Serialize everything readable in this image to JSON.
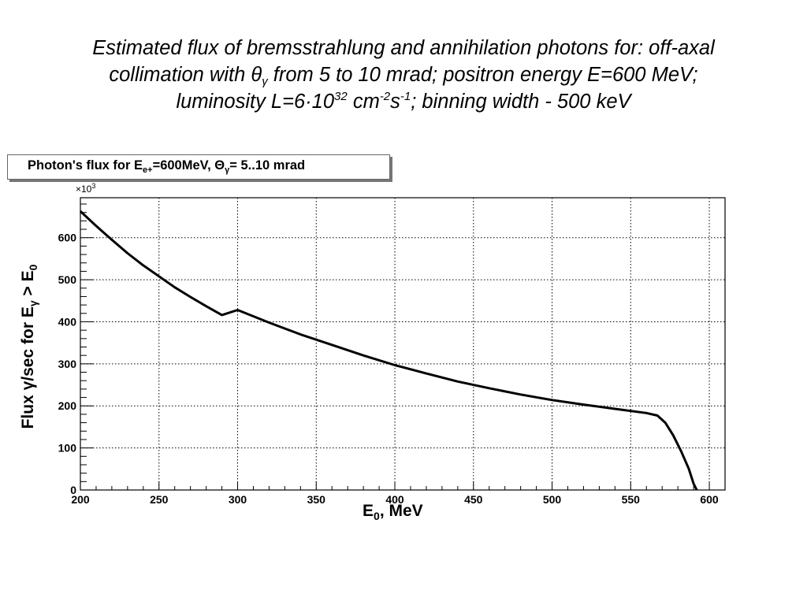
{
  "title": {
    "line1": "Estimated flux of bremsstrahlung and annihilation photons for: off-axal",
    "line2_a": "collimation with θ",
    "line2_sub": "γ",
    "line2_b": " from 5 to 10 mrad; positron energy E=600 MeV;",
    "line3_a": "luminosity L=6·10",
    "line3_sup1": "32",
    "line3_b": " cm",
    "line3_sup2": "-2",
    "line3_c": "s",
    "line3_sup3": "-1",
    "line3_d": "; binning width - 500 keV"
  },
  "plot_title": {
    "a": "Photon's flux for E",
    "sub1": "e+",
    "b": "=600MeV, Θ",
    "sub2": "γ",
    "c": "= 5..10 mrad"
  },
  "chart_data": {
    "type": "line",
    "xlabel_main": "E",
    "xlabel_sub": "0",
    "xlabel_rest": ",  MeV",
    "ylabel_a": "Flux γ/sec for E",
    "ylabel_sub1": "γ",
    "ylabel_b": " > E",
    "ylabel_sub2": "0",
    "y_multiplier": "×10",
    "y_multiplier_exp": "3",
    "xlim": [
      200,
      610
    ],
    "ylim": [
      0,
      695
    ],
    "x_ticks": [
      200,
      250,
      300,
      350,
      400,
      450,
      500,
      550,
      600
    ],
    "y_ticks": [
      0,
      100,
      200,
      300,
      400,
      500,
      600
    ],
    "grid": true,
    "line_color": "#000000",
    "series": [
      {
        "x": [
          200,
          210,
          220,
          230,
          240,
          250,
          260,
          270,
          280,
          290,
          300,
          320,
          340,
          360,
          380,
          400,
          420,
          440,
          460,
          480,
          500,
          520,
          540,
          560,
          567,
          572,
          577,
          582,
          587,
          590,
          592
        ],
        "y": [
          663,
          628,
          595,
          563,
          534,
          508,
          482,
          459,
          437,
          416,
          428,
          398,
          370,
          345,
          320,
          297,
          277,
          258,
          242,
          227,
          214,
          203,
          193,
          183,
          177,
          160,
          130,
          93,
          50,
          15,
          0
        ]
      }
    ]
  }
}
